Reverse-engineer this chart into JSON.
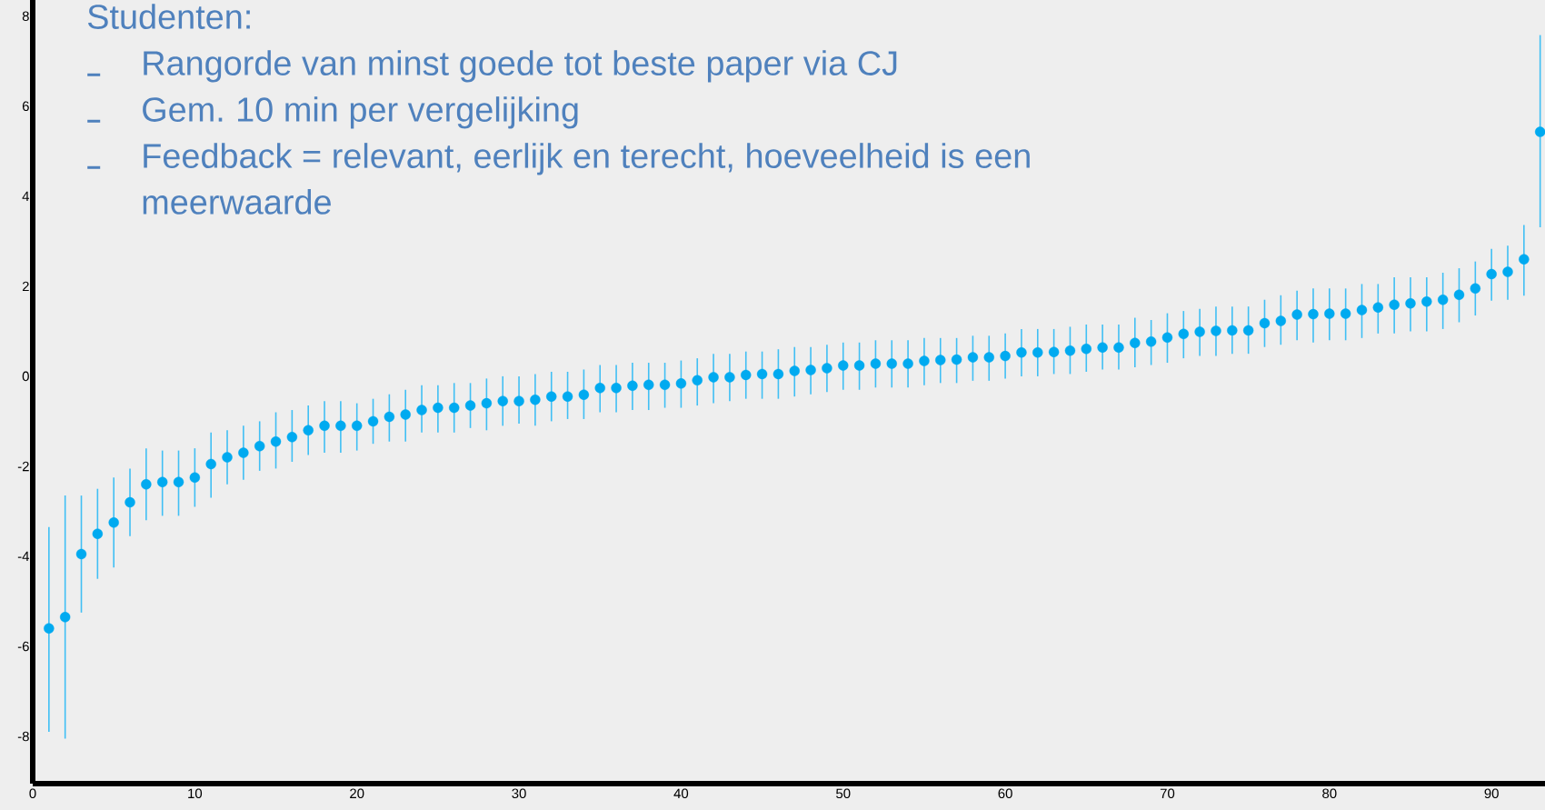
{
  "chart_data": {
    "type": "scatter",
    "annotations": [
      "Studenten:",
      "Rangorde van minst goede tot beste paper via CJ",
      "Gem. 10 min per vergelijking",
      "Feedback = relevant, eerlijk en terecht, hoeveelheid is een meerwaarde"
    ],
    "x": [
      1,
      2,
      3,
      4,
      5,
      6,
      7,
      8,
      9,
      10,
      11,
      12,
      13,
      14,
      15,
      16,
      17,
      18,
      19,
      20,
      21,
      22,
      23,
      24,
      25,
      26,
      27,
      28,
      29,
      30,
      31,
      32,
      33,
      34,
      35,
      36,
      37,
      38,
      39,
      40,
      41,
      42,
      43,
      44,
      45,
      46,
      47,
      48,
      49,
      50,
      51,
      52,
      53,
      54,
      55,
      56,
      57,
      58,
      59,
      60,
      61,
      62,
      63,
      64,
      65,
      66,
      67,
      68,
      69,
      70,
      71,
      72,
      73,
      74,
      75,
      76,
      77,
      78,
      79,
      80,
      81,
      82,
      83,
      84,
      85,
      86,
      87,
      88,
      89,
      90,
      91,
      92,
      93
    ],
    "series": [
      {
        "color": "#00aaf0",
        "values": [
          -5.6,
          -5.35,
          -3.95,
          -3.5,
          -3.25,
          -2.8,
          -2.4,
          -2.35,
          -2.35,
          -2.25,
          -1.95,
          -1.8,
          -1.7,
          -1.55,
          -1.45,
          -1.35,
          -1.2,
          -1.1,
          -1.1,
          -1.1,
          -1.0,
          -0.9,
          -0.85,
          -0.75,
          -0.7,
          -0.7,
          -0.65,
          -0.6,
          -0.55,
          -0.55,
          -0.52,
          -0.45,
          -0.45,
          -0.41,
          -0.26,
          -0.26,
          -0.21,
          -0.19,
          -0.19,
          -0.16,
          -0.09,
          -0.02,
          -0.02,
          0.03,
          0.05,
          0.05,
          0.12,
          0.14,
          0.18,
          0.24,
          0.24,
          0.28,
          0.28,
          0.28,
          0.34,
          0.36,
          0.37,
          0.42,
          0.42,
          0.45,
          0.53,
          0.53,
          0.54,
          0.57,
          0.61,
          0.64,
          0.64,
          0.74,
          0.77,
          0.86,
          0.94,
          0.99,
          1.01,
          1.02,
          1.02,
          1.18,
          1.23,
          1.37,
          1.38,
          1.39,
          1.39,
          1.47,
          1.53,
          1.59,
          1.62,
          1.66,
          1.7,
          1.81,
          1.95,
          2.27,
          2.32,
          2.6,
          5.43
        ],
        "errors": [
          [
            -7.9,
            -3.35
          ],
          [
            -8.05,
            -2.65
          ],
          [
            -5.25,
            -2.65
          ],
          [
            -4.5,
            -2.5
          ],
          [
            -4.25,
            -2.25
          ],
          [
            -3.55,
            -2.05
          ],
          [
            -3.2,
            -1.6
          ],
          [
            -3.1,
            -1.65
          ],
          [
            -3.1,
            -1.65
          ],
          [
            -2.9,
            -1.6
          ],
          [
            -2.7,
            -1.25
          ],
          [
            -2.4,
            -1.2
          ],
          [
            -2.3,
            -1.1
          ],
          [
            -2.1,
            -1.0
          ],
          [
            -2.05,
            -0.8
          ],
          [
            -1.9,
            -0.75
          ],
          [
            -1.75,
            -0.65
          ],
          [
            -1.7,
            -0.55
          ],
          [
            -1.7,
            -0.55
          ],
          [
            -1.65,
            -0.6
          ],
          [
            -1.5,
            -0.5
          ],
          [
            -1.45,
            -0.4
          ],
          [
            -1.45,
            -0.3
          ],
          [
            -1.25,
            -0.2
          ],
          [
            -1.25,
            -0.2
          ],
          [
            -1.25,
            -0.15
          ],
          [
            -1.15,
            -0.15
          ],
          [
            -1.2,
            -0.05
          ],
          [
            -1.1,
            0.0
          ],
          [
            -1.05,
            0.0
          ],
          [
            -1.1,
            0.05
          ],
          [
            -1.0,
            0.1
          ],
          [
            -0.95,
            0.1
          ],
          [
            -0.95,
            0.15
          ],
          [
            -0.8,
            0.25
          ],
          [
            -0.8,
            0.25
          ],
          [
            -0.75,
            0.3
          ],
          [
            -0.75,
            0.3
          ],
          [
            -0.7,
            0.3
          ],
          [
            -0.7,
            0.35
          ],
          [
            -0.65,
            0.4
          ],
          [
            -0.6,
            0.5
          ],
          [
            -0.55,
            0.5
          ],
          [
            -0.5,
            0.55
          ],
          [
            -0.5,
            0.55
          ],
          [
            -0.5,
            0.6
          ],
          [
            -0.45,
            0.65
          ],
          [
            -0.4,
            0.65
          ],
          [
            -0.35,
            0.7
          ],
          [
            -0.3,
            0.75
          ],
          [
            -0.3,
            0.75
          ],
          [
            -0.25,
            0.8
          ],
          [
            -0.25,
            0.8
          ],
          [
            -0.25,
            0.8
          ],
          [
            -0.2,
            0.85
          ],
          [
            -0.15,
            0.85
          ],
          [
            -0.15,
            0.85
          ],
          [
            -0.1,
            0.9
          ],
          [
            -0.1,
            0.9
          ],
          [
            -0.05,
            0.95
          ],
          [
            0.0,
            1.05
          ],
          [
            0.0,
            1.05
          ],
          [
            0.05,
            1.05
          ],
          [
            0.05,
            1.1
          ],
          [
            0.1,
            1.15
          ],
          [
            0.15,
            1.15
          ],
          [
            0.15,
            1.15
          ],
          [
            0.2,
            1.3
          ],
          [
            0.25,
            1.25
          ],
          [
            0.3,
            1.4
          ],
          [
            0.4,
            1.45
          ],
          [
            0.45,
            1.5
          ],
          [
            0.45,
            1.55
          ],
          [
            0.5,
            1.55
          ],
          [
            0.5,
            1.55
          ],
          [
            0.65,
            1.7
          ],
          [
            0.7,
            1.8
          ],
          [
            0.8,
            1.9
          ],
          [
            0.75,
            1.95
          ],
          [
            0.8,
            1.95
          ],
          [
            0.8,
            1.95
          ],
          [
            0.85,
            2.05
          ],
          [
            0.95,
            2.05
          ],
          [
            0.95,
            2.2
          ],
          [
            1.0,
            2.2
          ],
          [
            1.0,
            2.2
          ],
          [
            1.05,
            2.3
          ],
          [
            1.2,
            2.4
          ],
          [
            1.35,
            2.55
          ],
          [
            1.68,
            2.83
          ],
          [
            1.7,
            2.9
          ],
          [
            1.79,
            3.36
          ],
          [
            3.31,
            7.58
          ]
        ]
      }
    ],
    "xlim": [
      0,
      93.3
    ],
    "ylim": [
      -9.05,
      8.36
    ],
    "xticks": [
      0,
      10,
      20,
      30,
      40,
      50,
      60,
      70,
      80,
      90
    ],
    "yticks": [
      -8,
      -6,
      -4,
      -2,
      0,
      2,
      4,
      6,
      8
    ]
  }
}
